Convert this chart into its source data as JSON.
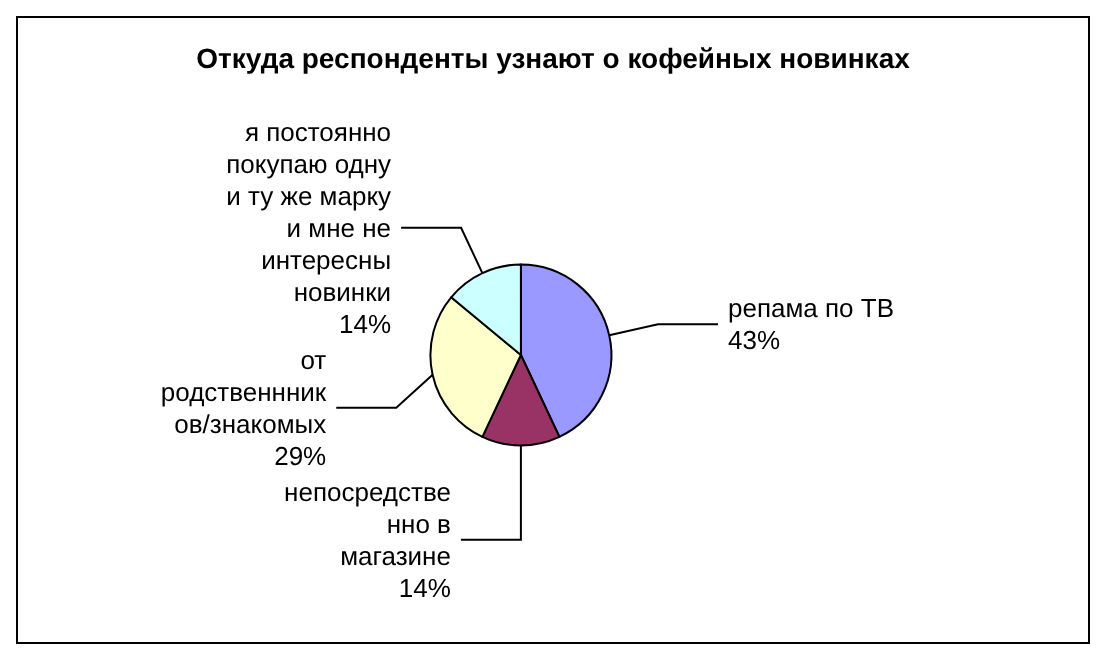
{
  "chart_data": {
    "type": "pie",
    "title": "Откуда респонденты узнают о кофейных новинках",
    "categories": [
      "репама по ТВ",
      "непосредстве\nнно в\nмагазине",
      "от\nродственнник\nов/знакомых",
      "я постоянно\nпокупаю одну\nи ту же марку\nи мне не\nинтересны\nновинки"
    ],
    "values": [
      43,
      14,
      29,
      14
    ],
    "colors": [
      "#9999ff",
      "#993366",
      "#ffffcc",
      "#ccffff"
    ],
    "value_labels": [
      "43%",
      "14%",
      "29%",
      "14%"
    ],
    "legend": false
  }
}
